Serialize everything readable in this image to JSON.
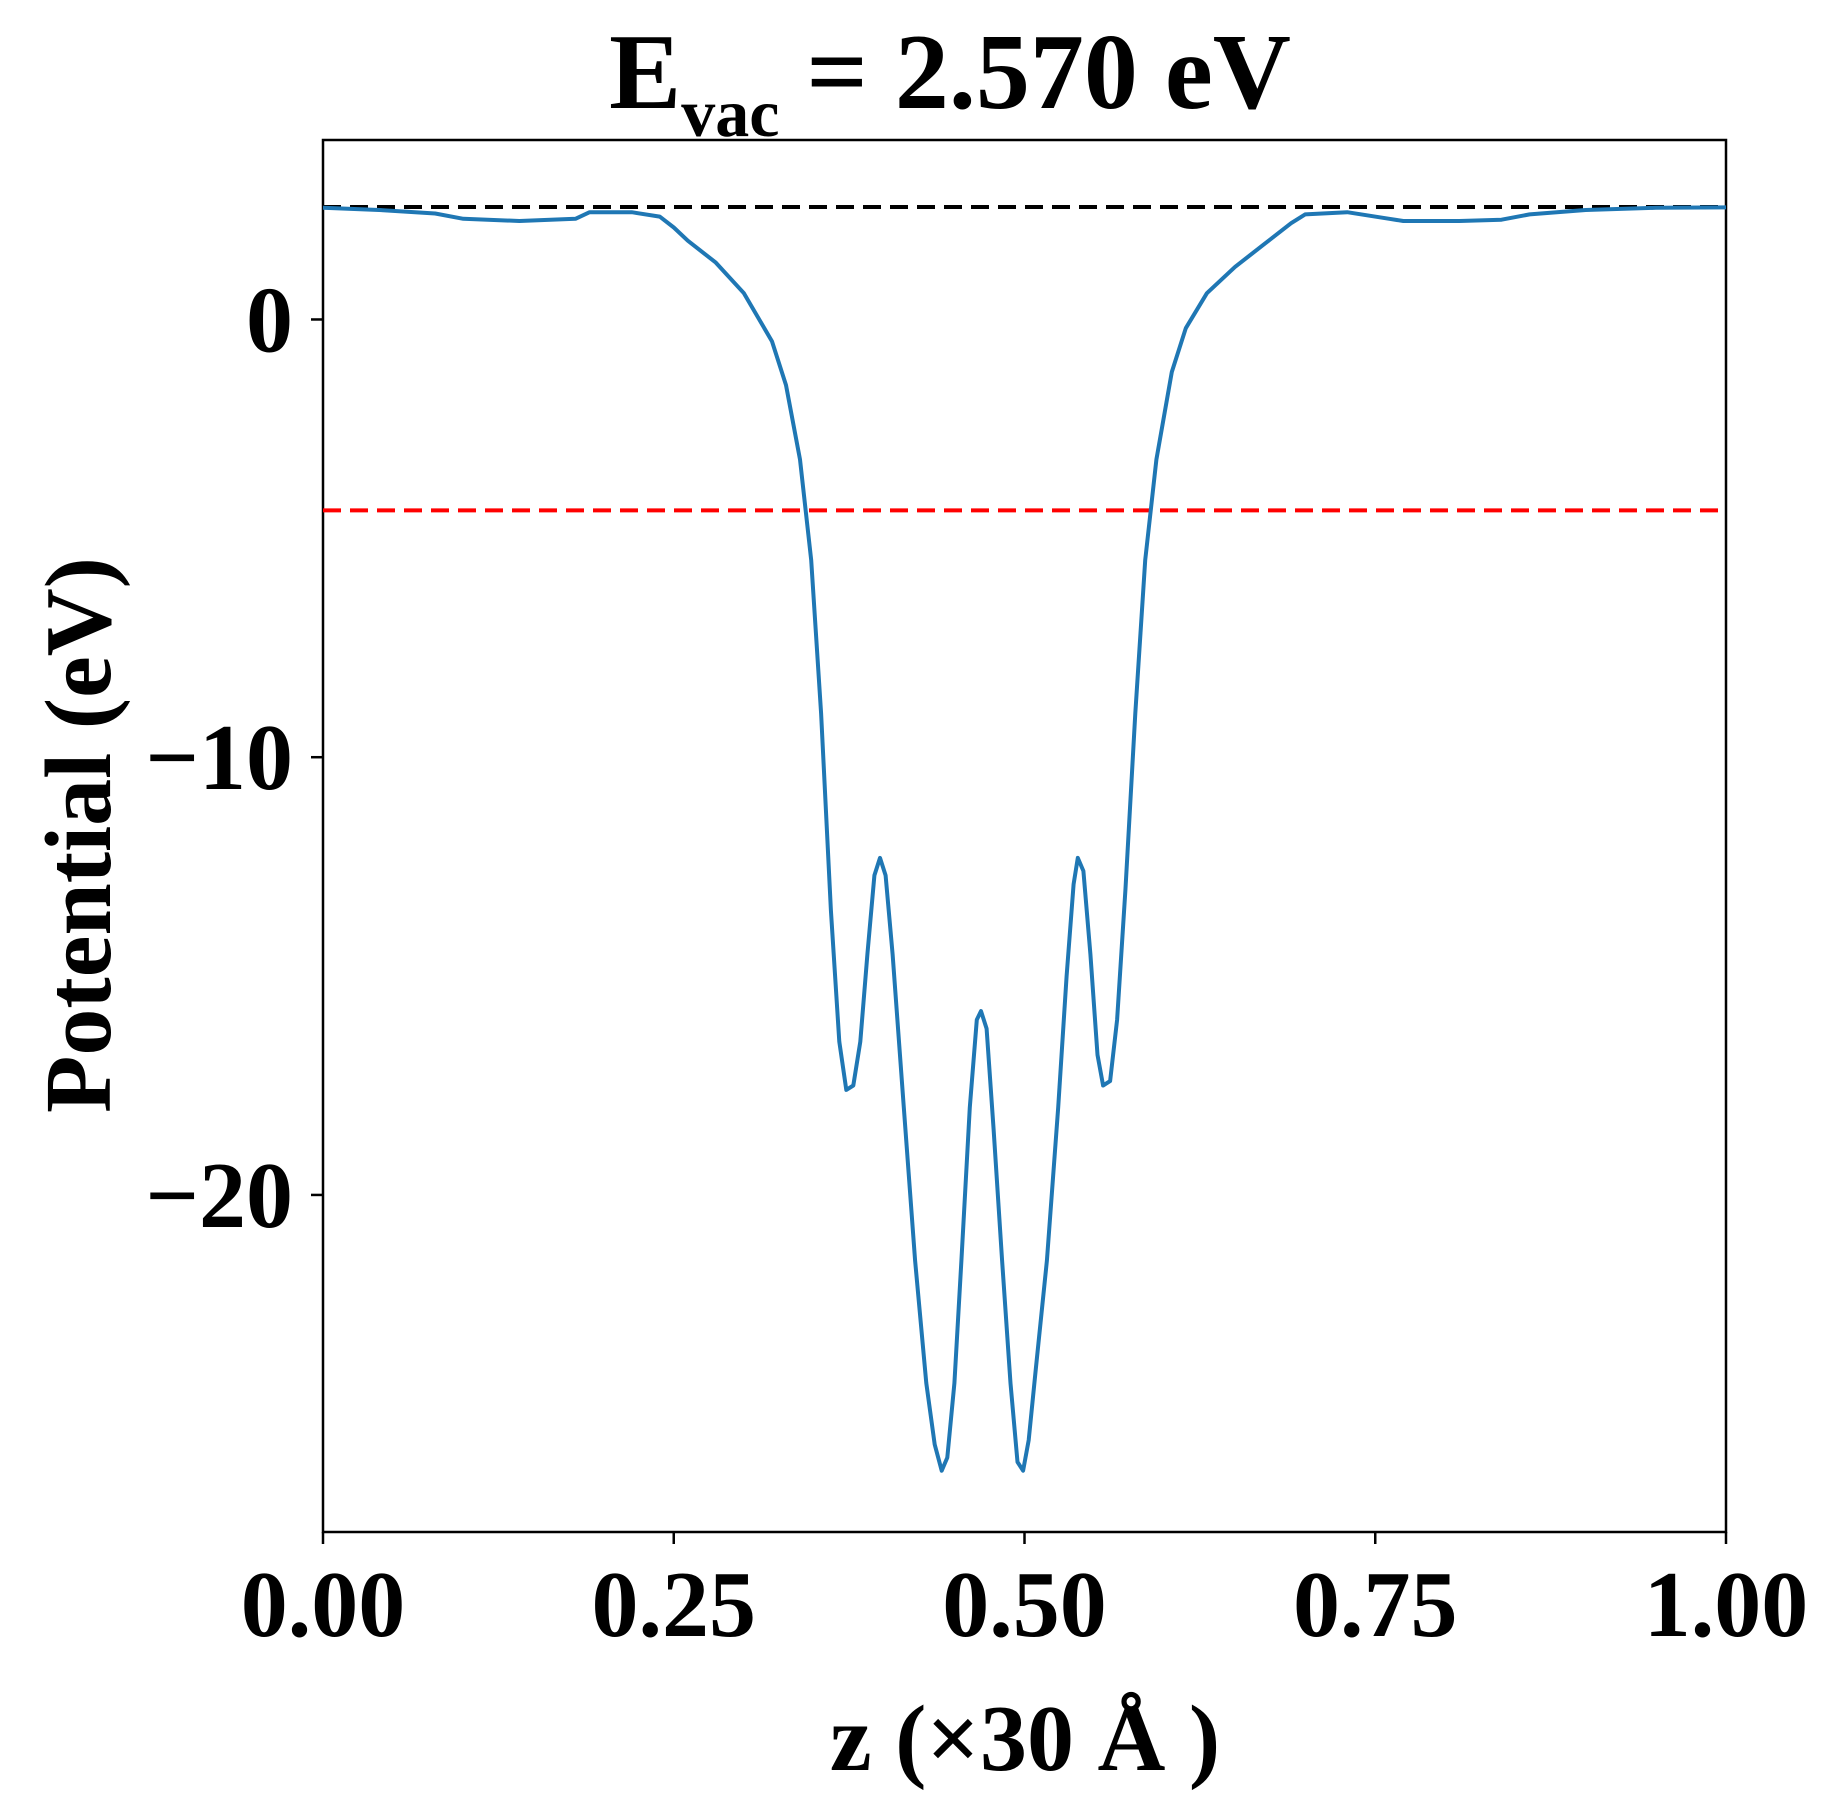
{
  "chart_data": {
    "type": "line",
    "title": {
      "prefix": "E",
      "subscript": "vac",
      "suffix": " = 2.570 eV"
    },
    "xlabel": "z (×30 Å )",
    "ylabel": "Potential (eV)",
    "xlim": [
      0.0,
      1.0
    ],
    "ylim": [
      -27.7,
      4.1
    ],
    "x_ticks": [
      0.0,
      0.25,
      0.5,
      0.75,
      1.0
    ],
    "x_tick_labels": [
      "0.00",
      "0.25",
      "0.50",
      "0.75",
      "1.00"
    ],
    "y_ticks": [
      0,
      -10,
      -20
    ],
    "y_tick_labels": [
      "0",
      "−10",
      "−20"
    ],
    "grid": false,
    "reference_lines": [
      {
        "y": 2.57,
        "color": "#000000",
        "style": "dashed"
      },
      {
        "y": -4.36,
        "color": "#ff0000",
        "style": "dashed"
      }
    ],
    "series": [
      {
        "color": "#1f77b4",
        "points": [
          [
            0.0,
            2.55
          ],
          [
            0.04,
            2.5
          ],
          [
            0.08,
            2.42
          ],
          [
            0.1,
            2.3
          ],
          [
            0.14,
            2.25
          ],
          [
            0.18,
            2.3
          ],
          [
            0.19,
            2.45
          ],
          [
            0.22,
            2.45
          ],
          [
            0.24,
            2.35
          ],
          [
            0.25,
            2.1
          ],
          [
            0.26,
            1.8
          ],
          [
            0.28,
            1.3
          ],
          [
            0.3,
            0.6
          ],
          [
            0.32,
            -0.5
          ],
          [
            0.33,
            -1.5
          ],
          [
            0.34,
            -3.2
          ],
          [
            0.348,
            -5.5
          ],
          [
            0.355,
            -9.0
          ],
          [
            0.362,
            -13.5
          ],
          [
            0.368,
            -16.5
          ],
          [
            0.373,
            -17.6
          ],
          [
            0.378,
            -17.5
          ],
          [
            0.383,
            -16.5
          ],
          [
            0.388,
            -14.5
          ],
          [
            0.393,
            -12.7
          ],
          [
            0.397,
            -12.3
          ],
          [
            0.401,
            -12.7
          ],
          [
            0.406,
            -14.5
          ],
          [
            0.414,
            -18.0
          ],
          [
            0.422,
            -21.5
          ],
          [
            0.43,
            -24.3
          ],
          [
            0.436,
            -25.7
          ],
          [
            0.441,
            -26.3
          ],
          [
            0.445,
            -26.0
          ],
          [
            0.45,
            -24.3
          ],
          [
            0.455,
            -21.5
          ],
          [
            0.461,
            -18.0
          ],
          [
            0.466,
            -16.0
          ],
          [
            0.469,
            -15.8
          ],
          [
            0.473,
            -16.2
          ],
          [
            0.478,
            -18.5
          ],
          [
            0.484,
            -21.5
          ],
          [
            0.49,
            -24.3
          ],
          [
            0.495,
            -26.1
          ],
          [
            0.499,
            -26.3
          ],
          [
            0.503,
            -25.6
          ],
          [
            0.508,
            -24.0
          ],
          [
            0.516,
            -21.5
          ],
          [
            0.524,
            -18.0
          ],
          [
            0.53,
            -15.0
          ],
          [
            0.535,
            -12.9
          ],
          [
            0.538,
            -12.3
          ],
          [
            0.542,
            -12.6
          ],
          [
            0.547,
            -14.5
          ],
          [
            0.552,
            -16.8
          ],
          [
            0.556,
            -17.5
          ],
          [
            0.561,
            -17.4
          ],
          [
            0.566,
            -16.0
          ],
          [
            0.572,
            -13.0
          ],
          [
            0.579,
            -9.0
          ],
          [
            0.586,
            -5.5
          ],
          [
            0.594,
            -3.2
          ],
          [
            0.605,
            -1.2
          ],
          [
            0.615,
            -0.2
          ],
          [
            0.63,
            0.6
          ],
          [
            0.65,
            1.2
          ],
          [
            0.67,
            1.7
          ],
          [
            0.69,
            2.2
          ],
          [
            0.7,
            2.4
          ],
          [
            0.73,
            2.45
          ],
          [
            0.76,
            2.3
          ],
          [
            0.77,
            2.25
          ],
          [
            0.81,
            2.25
          ],
          [
            0.84,
            2.28
          ],
          [
            0.86,
            2.4
          ],
          [
            0.9,
            2.5
          ],
          [
            0.95,
            2.55
          ],
          [
            1.0,
            2.56
          ]
        ]
      }
    ]
  }
}
